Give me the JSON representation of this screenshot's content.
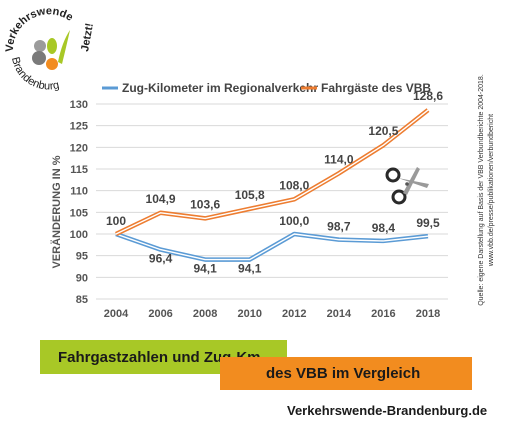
{
  "logo": {
    "line1": "Verkehrswende",
    "line2": "Brandenburg",
    "line3": "Jetzt!"
  },
  "source_note": {
    "line1": "Quelle: eigene Darstellung auf Basis der VBB Verbundberichte 2004-2018.",
    "line2": "www.vbb.de/presse/publikationen/verbundbericht"
  },
  "banner": {
    "line1": "Fahrgastzahlen und Zug-Km",
    "line2": "des VBB im Vergleich"
  },
  "website": "Verkehrswende-Brandenburg.de",
  "colors": {
    "blue": "#5b9bd5",
    "orange": "#ed7d31",
    "green": "#a8c826",
    "orange_banner": "#f28c1f"
  },
  "icons": [
    "scissors-icon"
  ],
  "chart_data": {
    "type": "line",
    "x": [
      "2004",
      "2006",
      "2008",
      "2010",
      "2012",
      "2014",
      "2016",
      "2018"
    ],
    "ylabel": "VERÄNDERUNG IN %",
    "ylim": [
      85,
      130
    ],
    "yticks": [
      "85",
      "90",
      "95",
      "100",
      "105",
      "110",
      "115",
      "120",
      "125",
      "130"
    ],
    "grid": true,
    "legend_position": "top",
    "series": [
      {
        "name": "Zug-Kilometer im Regionalverkehr",
        "color": "#5b9bd5",
        "values": [
          100,
          96.4,
          94.1,
          94.1,
          100.0,
          98.7,
          98.4,
          99.5
        ],
        "labels": [
          "100",
          "96,4",
          "94,1",
          "94,1",
          "100,0",
          "98,7",
          "98,4",
          "99,5"
        ]
      },
      {
        "name": "Fahrgäste des VBB",
        "color": "#ed7d31",
        "values": [
          100,
          104.9,
          103.6,
          105.8,
          108.0,
          114.0,
          120.5,
          128.6
        ],
        "labels": [
          "",
          "104,9",
          "103,6",
          "105,8",
          "108,0",
          "114,0",
          "120,5",
          "128,6"
        ]
      }
    ]
  }
}
